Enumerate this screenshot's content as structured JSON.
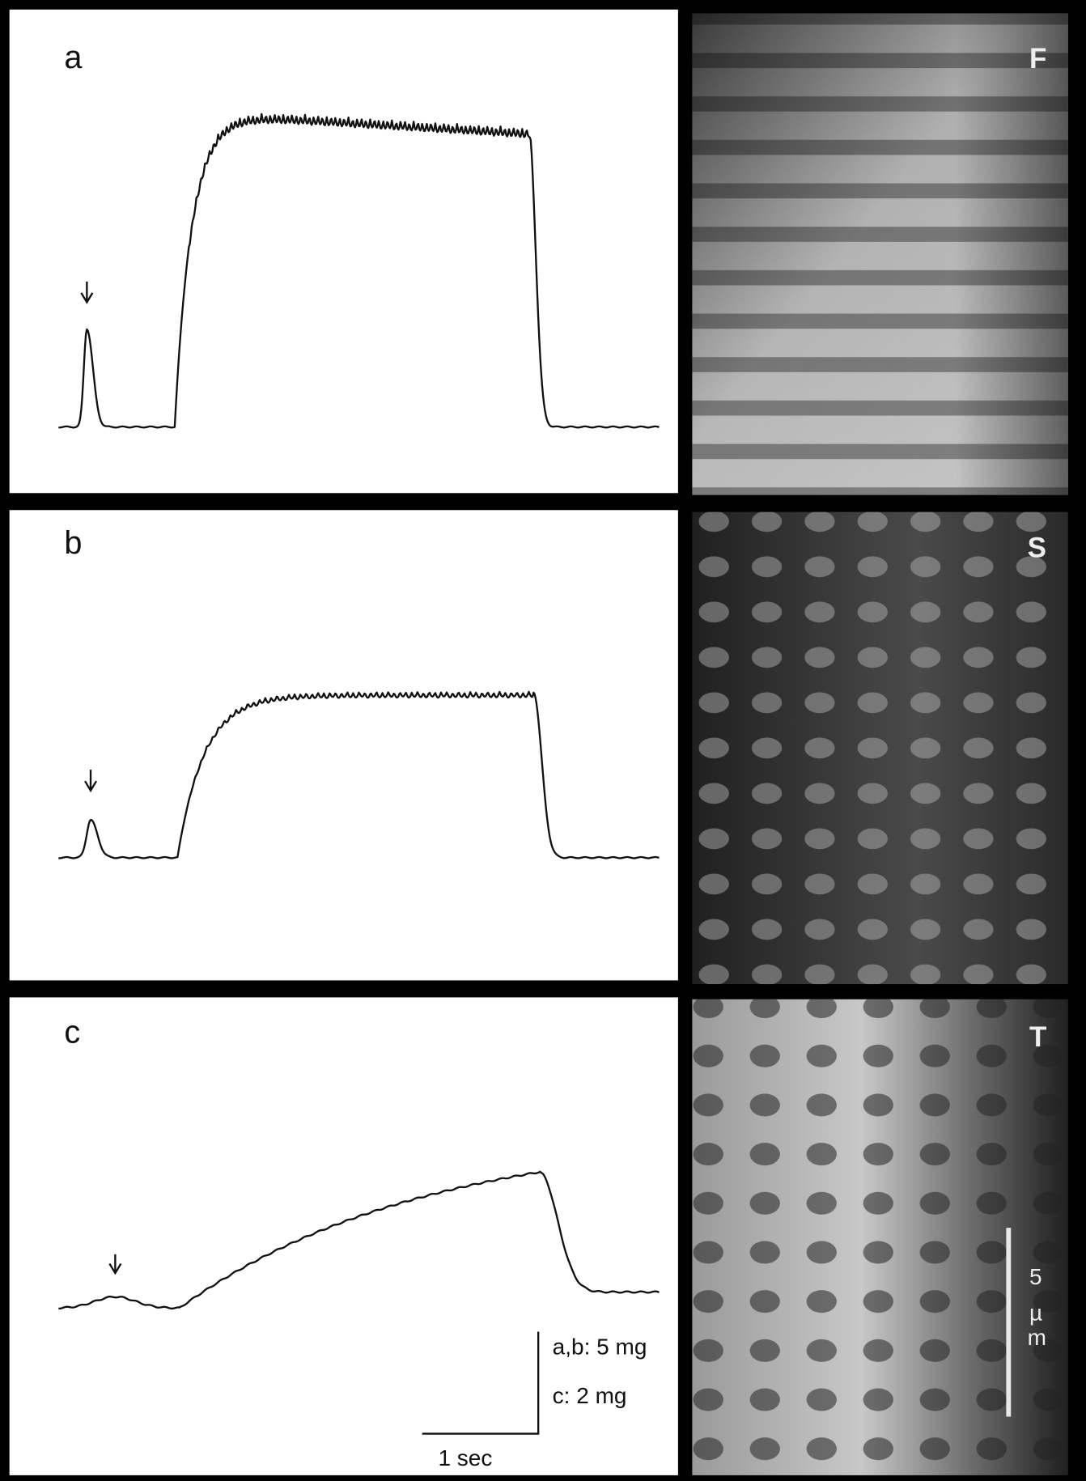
{
  "panels": [
    {
      "label": "a",
      "image_label": "F"
    },
    {
      "label": "b",
      "image_label": "S"
    },
    {
      "label": "c",
      "image_label": "T"
    }
  ],
  "scale": {
    "force_ab": "a,b: 5 mg",
    "force_c": "c: 2 mg",
    "time": "1 sec",
    "length": [
      "5",
      "µ",
      "m"
    ]
  }
}
